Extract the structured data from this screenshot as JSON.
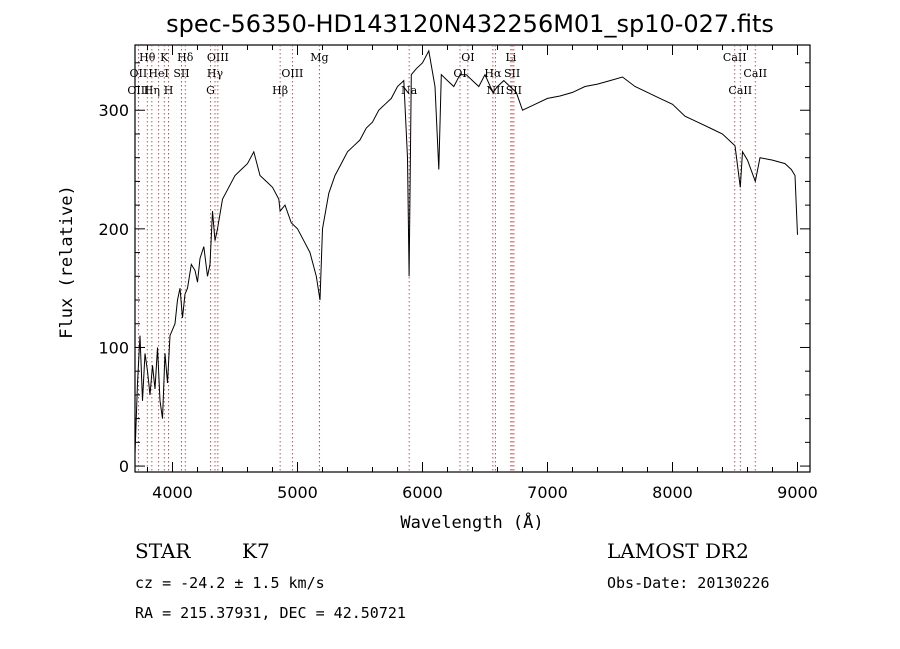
{
  "chart_data": {
    "type": "line",
    "title": "spec-56350-HD143120N432256M01_sp10-027.fits",
    "xlabel": "Wavelength (Å)",
    "ylabel": "Flux (relative)",
    "xlim": [
      3700,
      9100
    ],
    "ylim": [
      -5,
      355
    ],
    "x_ticks": [
      4000,
      5000,
      6000,
      7000,
      8000,
      9000
    ],
    "x_tick_labels": [
      "4000",
      "5000",
      "6000",
      "7000",
      "8000",
      "9000"
    ],
    "y_ticks": [
      0,
      100,
      200,
      300
    ],
    "y_tick_labels": [
      "0",
      "100",
      "200",
      "300"
    ],
    "grid": false,
    "series": [
      {
        "x": [
          3700,
          3720,
          3740,
          3760,
          3780,
          3800,
          3820,
          3840,
          3860,
          3880,
          3900,
          3920,
          3940,
          3960,
          3980,
          4000,
          4020,
          4040,
          4060,
          4080,
          4100,
          4120,
          4150,
          4180,
          4200,
          4220,
          4250,
          4280,
          4300,
          4320,
          4340,
          4360,
          4400,
          4450,
          4500,
          4550,
          4600,
          4650,
          4700,
          4750,
          4800,
          4850,
          4861,
          4900,
          4950,
          5000,
          5050,
          5100,
          5150,
          5180,
          5200,
          5250,
          5300,
          5350,
          5400,
          5450,
          5500,
          5550,
          5600,
          5650,
          5700,
          5750,
          5800,
          5850,
          5880,
          5893,
          5910,
          5950,
          6000,
          6050,
          6100,
          6130,
          6150,
          6200,
          6250,
          6300,
          6350,
          6400,
          6450,
          6500,
          6563,
          6600,
          6650,
          6700,
          6750,
          6800,
          6900,
          7000,
          7100,
          7200,
          7300,
          7400,
          7500,
          7600,
          7700,
          7800,
          7900,
          8000,
          8100,
          8200,
          8300,
          8400,
          8500,
          8542,
          8560,
          8600,
          8662,
          8700,
          8800,
          8900,
          8950,
          8980,
          9000
        ],
        "y": [
          10,
          70,
          110,
          55,
          95,
          80,
          60,
          85,
          65,
          100,
          55,
          40,
          95,
          70,
          110,
          115,
          120,
          140,
          150,
          125,
          145,
          150,
          170,
          165,
          155,
          175,
          185,
          160,
          170,
          215,
          190,
          200,
          225,
          235,
          245,
          250,
          255,
          265,
          245,
          240,
          235,
          225,
          215,
          220,
          205,
          200,
          190,
          180,
          160,
          140,
          200,
          230,
          245,
          255,
          265,
          270,
          275,
          285,
          290,
          300,
          305,
          310,
          320,
          325,
          260,
          160,
          330,
          335,
          340,
          350,
          320,
          250,
          330,
          325,
          320,
          330,
          330,
          325,
          320,
          330,
          315,
          320,
          325,
          320,
          315,
          300,
          305,
          310,
          312,
          315,
          320,
          322,
          325,
          328,
          320,
          315,
          310,
          305,
          295,
          290,
          285,
          280,
          270,
          235,
          265,
          258,
          240,
          260,
          258,
          255,
          250,
          245,
          195
        ]
      }
    ],
    "line_markers": [
      {
        "label": "Hθ",
        "x": 3798,
        "row": 1
      },
      {
        "label": "OII",
        "x": 3727,
        "row": 2
      },
      {
        "label": "OIII",
        "x": 3727,
        "row": 3
      },
      {
        "label": "K",
        "x": 3934,
        "row": 1
      },
      {
        "label": "HeI",
        "x": 3889,
        "row": 2
      },
      {
        "label": "Hη",
        "x": 3835,
        "row": 3
      },
      {
        "label": "Hδ",
        "x": 4102,
        "row": 1
      },
      {
        "label": "SII",
        "x": 4072,
        "row": 2
      },
      {
        "label": "H",
        "x": 3968,
        "row": 3
      },
      {
        "label": "OIII",
        "x": 4363,
        "row": 1
      },
      {
        "label": "Hγ",
        "x": 4340,
        "row": 2
      },
      {
        "label": "G",
        "x": 4304,
        "row": 3
      },
      {
        "label": "Mg",
        "x": 5175,
        "row": 1
      },
      {
        "label": "OIII",
        "x": 4959,
        "row": 2
      },
      {
        "label": "Hβ",
        "x": 4861,
        "row": 3
      },
      {
        "label": "Na",
        "x": 5893,
        "row": 3
      },
      {
        "label": "OI",
        "x": 6363,
        "row": 1
      },
      {
        "label": "OI",
        "x": 6300,
        "row": 2
      },
      {
        "label": "Hα",
        "x": 6563,
        "row": 2
      },
      {
        "label": "Li",
        "x": 6707,
        "row": 1
      },
      {
        "label": "SII",
        "x": 6717,
        "row": 2
      },
      {
        "label": "NII",
        "x": 6584,
        "row": 3
      },
      {
        "label": "SII",
        "x": 6731,
        "row": 3
      },
      {
        "label": "CaII",
        "x": 8498,
        "row": 1
      },
      {
        "label": "CaII",
        "x": 8662,
        "row": 2
      },
      {
        "label": "CaII",
        "x": 8542,
        "row": 3
      }
    ]
  },
  "info": {
    "object_class": "STAR",
    "subclass": "K7",
    "survey": "LAMOST DR2",
    "redshift": "cz = -24.2 ± 1.5 km/s",
    "obs_date": "Obs-Date: 20130226",
    "coords": "RA = 215.37931, DEC =  42.50721"
  },
  "colors": {
    "spectrum": "#000000",
    "marker_line": "#cc2222",
    "axes": "#000000",
    "background": "#ffffff"
  }
}
